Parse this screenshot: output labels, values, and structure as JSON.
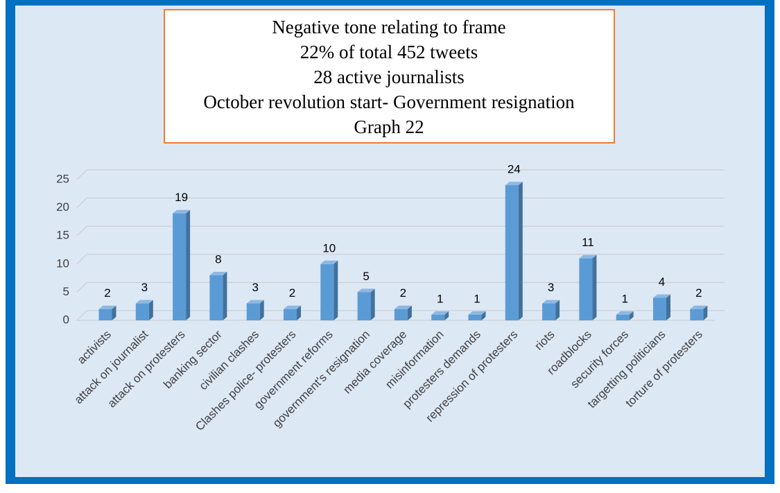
{
  "chart_data": {
    "type": "bar3d",
    "title": [
      "Negative tone relating to frame",
      "22% of total 452 tweets",
      "28 active journalists",
      "October revolution start- Government resignation",
      "Graph 22"
    ],
    "categories": [
      "activists",
      "attack on journalist",
      "attack on protesters",
      "banking sector",
      "civilian clashes",
      "Clashes police- protesters",
      "government reforms",
      "government's resignation",
      "media coverage",
      "misinformation",
      "protesters demands",
      "repression of protesters",
      "riots",
      "roadblocks",
      "security forces",
      "targetting politicians",
      "torture of protesters"
    ],
    "values": [
      2,
      3,
      19,
      8,
      3,
      2,
      10,
      5,
      2,
      1,
      1,
      24,
      3,
      11,
      1,
      4,
      2
    ],
    "color": "#5b9bd5",
    "ylim": [
      0,
      25
    ],
    "yticks": [
      0,
      5,
      10,
      15,
      20,
      25
    ],
    "grid": true
  }
}
